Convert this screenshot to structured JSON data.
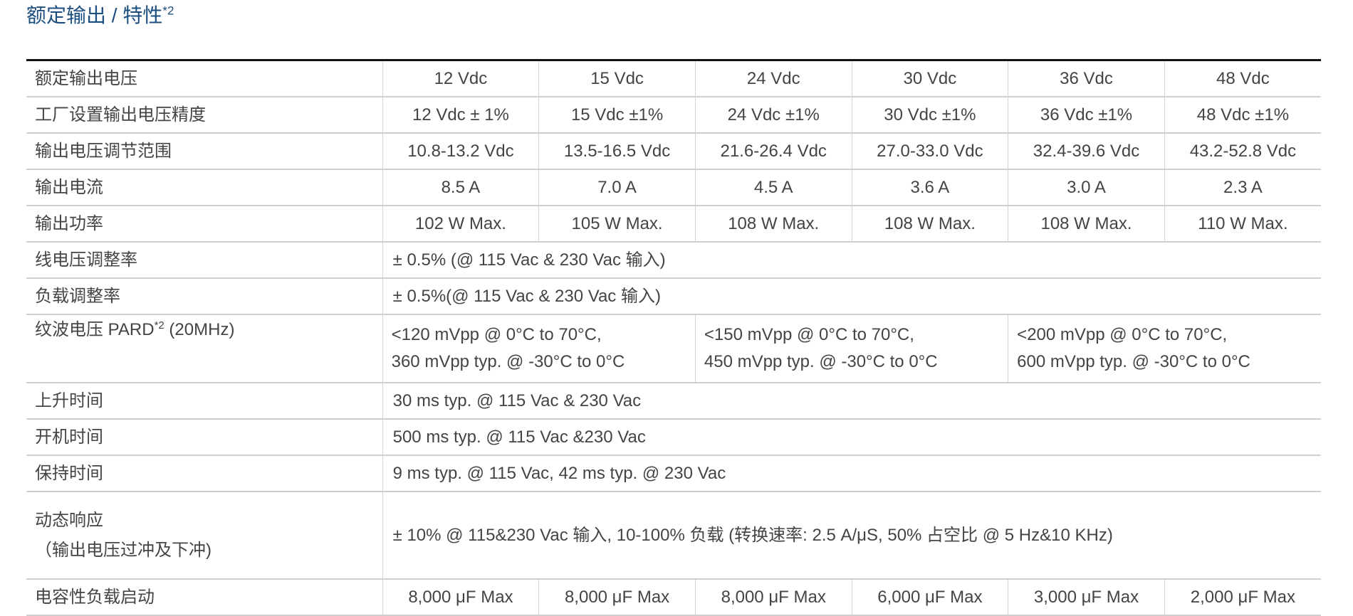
{
  "title": {
    "text": "额定输出 / 特性",
    "sup": "*2"
  },
  "colors": {
    "title": "#1c4f80",
    "text": "#444444",
    "rule": "#cfcfcf"
  },
  "rows": {
    "voltage": {
      "label": "额定输出电压",
      "values": [
        "12 Vdc",
        "15 Vdc",
        "24 Vdc",
        "30 Vdc",
        "36 Vdc",
        "48 Vdc"
      ]
    },
    "accuracy": {
      "label": "工厂设置输出电压精度",
      "values": [
        "12 Vdc ± 1%",
        "15 Vdc ±1%",
        "24 Vdc ±1%",
        "30 Vdc ±1%",
        "36 Vdc ±1%",
        "48 Vdc ±1%"
      ]
    },
    "range": {
      "label": "输出电压调节范围",
      "values": [
        "10.8-13.2 Vdc",
        "13.5-16.5 Vdc",
        "21.6-26.4 Vdc",
        "27.0-33.0 Vdc",
        "32.4-39.6 Vdc",
        "43.2-52.8 Vdc"
      ]
    },
    "current": {
      "label": "输出电流",
      "values": [
        "8.5 A",
        "7.0 A",
        "4.5 A",
        "3.6 A",
        "3.0 A",
        "2.3 A"
      ]
    },
    "power": {
      "label": "输出功率",
      "values": [
        "102 W Max.",
        "105 W Max.",
        "108 W Max.",
        "108 W Max.",
        "108 W Max.",
        "110 W Max."
      ]
    },
    "line_reg": {
      "label": "线电压调整率",
      "value": "± 0.5%  (@ 115 Vac & 230 Vac 输入)"
    },
    "load_reg": {
      "label": "负载调整率",
      "value": "± 0.5%(@ 115 Vac & 230 Vac 输入)"
    },
    "ripple": {
      "label": "纹波电压 PARD",
      "label_sup": "*2",
      "label_suffix": " (20MHz)",
      "values": [
        {
          "line1": "<120 mVpp @ 0°C to 70°C,",
          "line2": "360 mVpp typ. @ -30°C to 0°C"
        },
        {
          "line1": "<150 mVpp @ 0°C to 70°C,",
          "line2": "450 mVpp typ. @ -30°C to 0°C"
        },
        {
          "line1": "<200 mVpp @ 0°C to 70°C,",
          "line2": "600 mVpp typ. @ -30°C to 0°C"
        }
      ]
    },
    "rise": {
      "label": "上升时间",
      "value": "30 ms typ. @ 115 Vac & 230 Vac"
    },
    "startup": {
      "label": "开机时间",
      "value": "500 ms typ. @ 115 Vac &230 Vac"
    },
    "hold": {
      "label": "保持时间",
      "value": "9 ms typ. @ 115 Vac, 42 ms typ. @ 230 Vac"
    },
    "dynamic": {
      "label": "动态响应",
      "label2": "（输出电压过冲及下冲)",
      "value": "± 10% @ 115&230 Vac 输入, 10-100% 负载 (转换速率: 2.5 A/μS, 50% 占空比 @ 5 Hz&10 KHz)"
    },
    "cap": {
      "label": "电容性负载启动",
      "values": [
        "8,000 μF Max",
        "8,000 μF Max",
        "8,000 μF Max",
        "6,000 μF Max",
        "3,000 μF Max",
        "2,000 μF Max"
      ]
    }
  }
}
